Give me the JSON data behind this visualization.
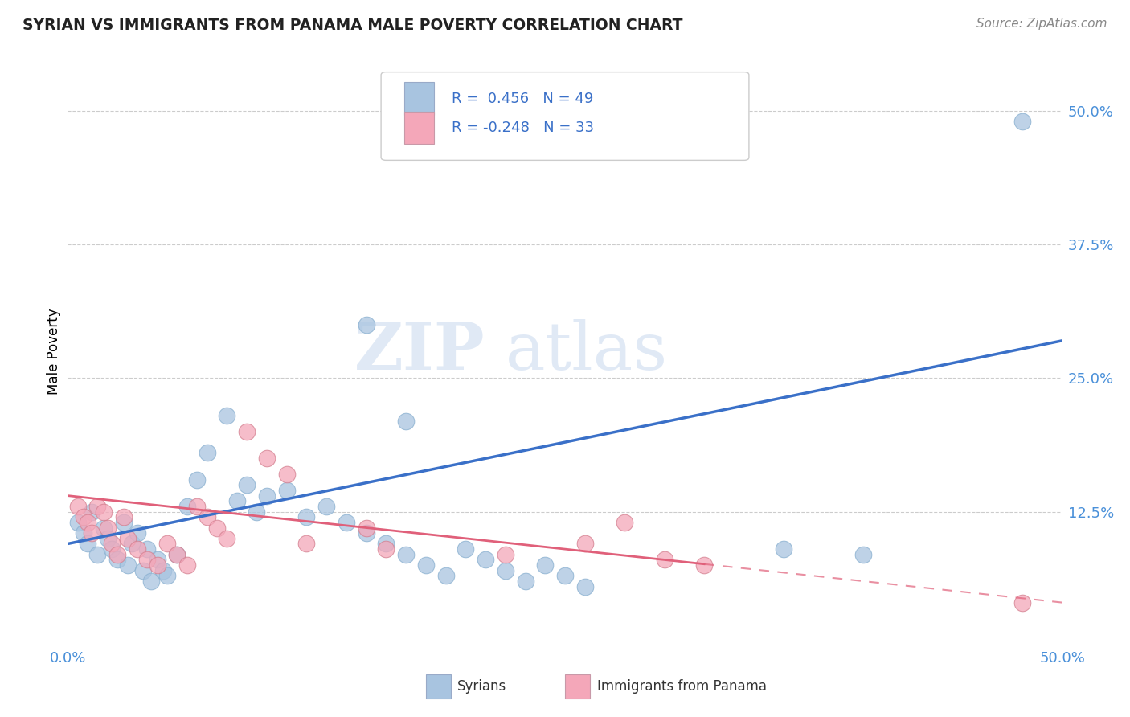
{
  "title": "SYRIAN VS IMMIGRANTS FROM PANAMA MALE POVERTY CORRELATION CHART",
  "source": "Source: ZipAtlas.com",
  "ylabel": "Male Poverty",
  "xlim": [
    0.0,
    0.5
  ],
  "ylim": [
    0.0,
    0.55
  ],
  "ytick_positions": [
    0.125,
    0.25,
    0.375,
    0.5
  ],
  "ytick_labels": [
    "12.5%",
    "25.0%",
    "37.5%",
    "50.0%"
  ],
  "blue_color": "#a8c4e0",
  "pink_color": "#f4a7b9",
  "blue_line_color": "#3a70c8",
  "pink_line_color": "#e0607a",
  "watermark_zip": "ZIP",
  "watermark_atlas": "atlas",
  "syrians_x": [
    0.005,
    0.008,
    0.01,
    0.012,
    0.015,
    0.018,
    0.02,
    0.022,
    0.025,
    0.028,
    0.03,
    0.032,
    0.035,
    0.038,
    0.04,
    0.042,
    0.045,
    0.048,
    0.05,
    0.055,
    0.06,
    0.065,
    0.07,
    0.08,
    0.085,
    0.09,
    0.095,
    0.1,
    0.11,
    0.12,
    0.13,
    0.14,
    0.15,
    0.16,
    0.17,
    0.18,
    0.19,
    0.2,
    0.21,
    0.22,
    0.23,
    0.24,
    0.25,
    0.26,
    0.15,
    0.17,
    0.36,
    0.4,
    0.48
  ],
  "syrians_y": [
    0.115,
    0.105,
    0.095,
    0.125,
    0.085,
    0.11,
    0.1,
    0.09,
    0.08,
    0.115,
    0.075,
    0.095,
    0.105,
    0.07,
    0.09,
    0.06,
    0.08,
    0.07,
    0.065,
    0.085,
    0.13,
    0.155,
    0.18,
    0.215,
    0.135,
    0.15,
    0.125,
    0.14,
    0.145,
    0.12,
    0.13,
    0.115,
    0.105,
    0.095,
    0.085,
    0.075,
    0.065,
    0.09,
    0.08,
    0.07,
    0.06,
    0.075,
    0.065,
    0.055,
    0.3,
    0.21,
    0.09,
    0.085,
    0.49
  ],
  "panama_x": [
    0.005,
    0.008,
    0.01,
    0.012,
    0.015,
    0.018,
    0.02,
    0.022,
    0.025,
    0.028,
    0.03,
    0.035,
    0.04,
    0.045,
    0.05,
    0.055,
    0.06,
    0.065,
    0.07,
    0.075,
    0.08,
    0.09,
    0.1,
    0.11,
    0.12,
    0.15,
    0.16,
    0.22,
    0.26,
    0.28,
    0.3,
    0.32,
    0.48
  ],
  "panama_y": [
    0.13,
    0.12,
    0.115,
    0.105,
    0.13,
    0.125,
    0.11,
    0.095,
    0.085,
    0.12,
    0.1,
    0.09,
    0.08,
    0.075,
    0.095,
    0.085,
    0.075,
    0.13,
    0.12,
    0.11,
    0.1,
    0.2,
    0.175,
    0.16,
    0.095,
    0.11,
    0.09,
    0.085,
    0.095,
    0.115,
    0.08,
    0.075,
    0.04
  ],
  "blue_line_x0": 0.0,
  "blue_line_y0": 0.095,
  "blue_line_x1": 0.5,
  "blue_line_y1": 0.285,
  "pink_line_x0": 0.0,
  "pink_line_y0": 0.14,
  "pink_line_x1_solid": 0.32,
  "pink_line_x1": 0.5,
  "pink_line_y1": 0.04
}
